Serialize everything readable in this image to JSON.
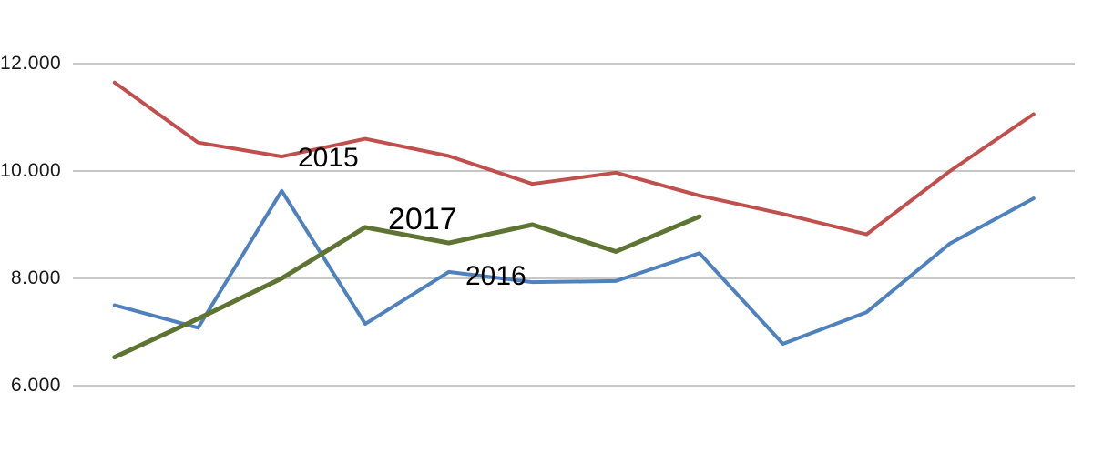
{
  "chart_data": {
    "type": "line",
    "title": "",
    "grid": true,
    "gridline_color": "#bfbfbf",
    "background_color": "#ffffff",
    "y_axis": {
      "tick_labels": [
        "12.000",
        "10.000",
        "8.000",
        "6.000"
      ],
      "tick_values": [
        12000,
        10000,
        8000,
        6000
      ],
      "range_shown": [
        6000,
        12000
      ]
    },
    "x_axis": {
      "tick_labels_visible": false,
      "num_points": 12
    },
    "legend": "inline-labels-near-lines",
    "series": [
      {
        "name": "2015",
        "color": "#c0504d",
        "values": [
          11650,
          10530,
          10270,
          10600,
          10280,
          9760,
          9970,
          9540,
          9200,
          8820,
          10000,
          11060
        ]
      },
      {
        "name": "2016",
        "color": "#4f81bd",
        "values": [
          7500,
          7080,
          9630,
          7150,
          8120,
          7930,
          7950,
          8470,
          6780,
          7370,
          8650,
          9490
        ]
      },
      {
        "name": "2017",
        "color": "#5f7332",
        "values": [
          6530,
          7250,
          8000,
          8950,
          8660,
          9000,
          8500,
          9150
        ]
      }
    ]
  }
}
